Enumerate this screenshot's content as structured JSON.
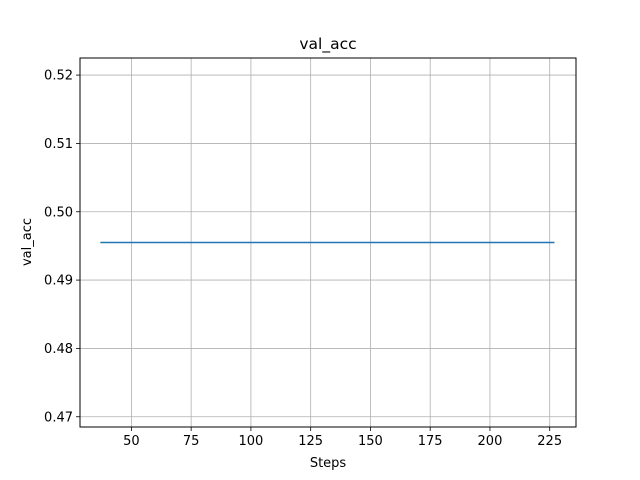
{
  "chart_data": {
    "type": "line",
    "title": "val_acc",
    "xlabel": "Steps",
    "ylabel": "val_acc",
    "xlim": [
      28.5,
      236
    ],
    "ylim": [
      0.4685,
      0.5225
    ],
    "xticks": [
      50,
      75,
      100,
      125,
      150,
      175,
      200,
      225
    ],
    "yticks": [
      0.47,
      0.48,
      0.49,
      0.5,
      0.51,
      0.52
    ],
    "xtick_labels": [
      "50",
      "75",
      "100",
      "125",
      "150",
      "175",
      "200",
      "225"
    ],
    "ytick_labels": [
      "0.47",
      "0.48",
      "0.49",
      "0.50",
      "0.51",
      "0.52"
    ],
    "grid": true,
    "series": [
      {
        "color": "#1f77b4",
        "x": [
          37,
          227
        ],
        "y": [
          0.4955,
          0.4955
        ]
      }
    ]
  }
}
